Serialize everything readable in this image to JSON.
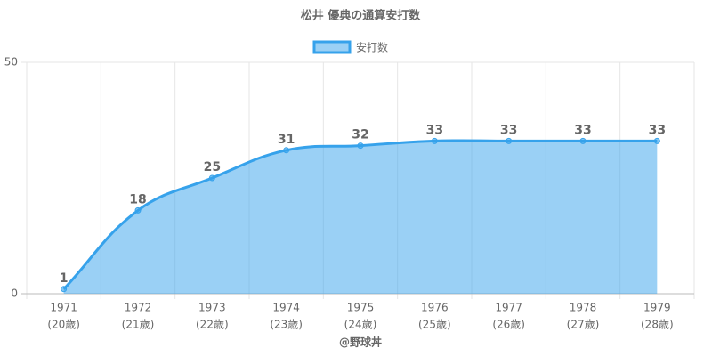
{
  "chart_data": {
    "type": "area",
    "title": "松井 優典の通算安打数",
    "x_label": "@野球丼",
    "categories": [
      [
        "1971",
        "(20歳)"
      ],
      [
        "1972",
        "(21歳)"
      ],
      [
        "1973",
        "(22歳)"
      ],
      [
        "1974",
        "(23歳)"
      ],
      [
        "1975",
        "(24歳)"
      ],
      [
        "1976",
        "(25歳)"
      ],
      [
        "1977",
        "(26歳)"
      ],
      [
        "1978",
        "(27歳)"
      ],
      [
        "1979",
        "(28歳)"
      ]
    ],
    "series": [
      {
        "name": "安打数",
        "color": "#36a2eb",
        "values": [
          1,
          18,
          25,
          31,
          32,
          33,
          33,
          33,
          33
        ]
      }
    ],
    "ylim": [
      0,
      50
    ],
    "yticks": [
      0,
      50
    ],
    "grid": true,
    "legend": "top"
  }
}
